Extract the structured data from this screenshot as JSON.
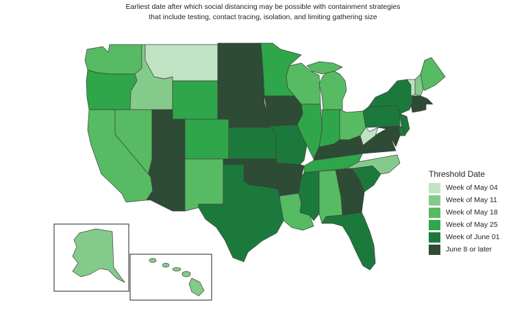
{
  "title": {
    "line1": "Earliest date after which social distancing may be possible with containment strategies",
    "line2": "that include testing, contact tracing, isolation, and limiting gathering size"
  },
  "legend": {
    "title": "Threshold Date",
    "items": [
      {
        "key": "may04",
        "label": "Week of May 04",
        "color": "#bfe3c3"
      },
      {
        "key": "may11",
        "label": "Week of May 11",
        "color": "#84ca8a"
      },
      {
        "key": "may18",
        "label": "Week of May 18",
        "color": "#56bb62"
      },
      {
        "key": "may25",
        "label": "Week of May 25",
        "color": "#2fa64a"
      },
      {
        "key": "jun01",
        "label": "Week of June 01",
        "color": "#1b7a3b"
      },
      {
        "key": "jun08",
        "label": "June 8 or later",
        "color": "#2d4b35"
      }
    ]
  },
  "states": {
    "WA": "may18",
    "OR": "may25",
    "CA": "may18",
    "NV": "may18",
    "ID": "may11",
    "MT": "may04",
    "WY": "may25",
    "UT": "jun08",
    "AZ": "jun08",
    "CO": "may25",
    "NM": "may18",
    "ND": "jun08",
    "SD": "jun08",
    "NE": "jun08",
    "KS": "jun01",
    "OK": "jun08",
    "TX": "jun01",
    "MN": "may25",
    "IA": "jun08",
    "MO": "jun01",
    "AR": "jun08",
    "LA": "may18",
    "WI": "may18",
    "IL": "may25",
    "MI": "may18",
    "IN": "may25",
    "OH": "may18",
    "KY": "jun08",
    "TN": "may25",
    "MS": "jun01",
    "AL": "may18",
    "GA": "jun08",
    "FL": "jun01",
    "SC": "jun01",
    "NC": "may11",
    "VA": "jun08",
    "WV": "may04",
    "PA": "jun01",
    "NY": "jun01",
    "VT": "may04",
    "NH": "may11",
    "ME": "may18",
    "MA": "jun08",
    "CT": "jun08",
    "RI": "jun08",
    "NJ": "jun01",
    "DE": "jun01",
    "MD": "jun08",
    "AK": "may11",
    "HI": "may11"
  }
}
